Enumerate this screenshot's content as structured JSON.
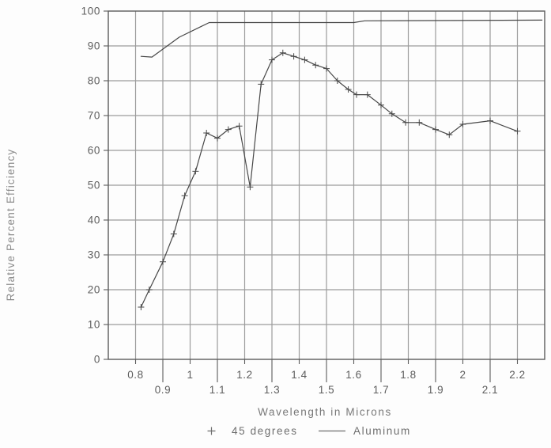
{
  "chart_data": {
    "type": "line",
    "title": "",
    "xlabel": "Wavelength in Microns",
    "ylabel": "Relative Percent Efficiency",
    "xlim": [
      0.7,
      2.3
    ],
    "ylim": [
      0,
      100
    ],
    "x_ticks": [
      0.8,
      0.9,
      1,
      1.1,
      1.2,
      1.3,
      1.4,
      1.5,
      1.6,
      1.7,
      1.8,
      1.9,
      2,
      2.1,
      2.2
    ],
    "x_tick_labels": [
      "0.8",
      "0.9",
      "1",
      "1.1",
      "1.2",
      "1.3",
      "1.4",
      "1.5",
      "1.6",
      "1.7",
      "1.8",
      "1.9",
      "2",
      "2.1",
      "2.2"
    ],
    "y_ticks": [
      0,
      10,
      20,
      30,
      40,
      50,
      60,
      70,
      80,
      90,
      100
    ],
    "y_tick_labels": [
      "0",
      "10",
      "20",
      "30",
      "40",
      "50",
      "60",
      "70",
      "80",
      "90",
      "100"
    ],
    "grid": true,
    "legend_position": "bottom",
    "colors": {
      "grid": "#9c9c9c",
      "frame": "#5c5c5c",
      "line": "#474747",
      "tick_text": "#5d5d5d",
      "title_text": "#787878",
      "background": "#fdfdfd"
    },
    "series": [
      {
        "name": "45 degrees",
        "marker": "+",
        "points": [
          [
            0.82,
            15
          ],
          [
            0.85,
            20
          ],
          [
            0.9,
            28
          ],
          [
            0.94,
            36
          ],
          [
            0.98,
            47
          ],
          [
            1.02,
            54
          ],
          [
            1.06,
            65
          ],
          [
            1.1,
            63.5
          ],
          [
            1.14,
            66
          ],
          [
            1.18,
            67
          ],
          [
            1.22,
            49.5
          ],
          [
            1.26,
            79
          ],
          [
            1.3,
            86
          ],
          [
            1.34,
            88
          ],
          [
            1.38,
            87
          ],
          [
            1.42,
            86
          ],
          [
            1.46,
            84.5
          ],
          [
            1.5,
            83.5
          ],
          [
            1.54,
            80
          ],
          [
            1.58,
            77.5
          ],
          [
            1.61,
            76
          ],
          [
            1.65,
            76
          ],
          [
            1.7,
            73
          ],
          [
            1.74,
            70.5
          ],
          [
            1.79,
            68
          ],
          [
            1.84,
            68
          ],
          [
            1.9,
            66
          ],
          [
            1.95,
            64.5
          ],
          [
            2.0,
            67.5
          ],
          [
            2.1,
            68.5
          ],
          [
            2.2,
            65.5
          ]
        ]
      },
      {
        "name": "Aluminum",
        "marker": "none",
        "points": [
          [
            0.82,
            87
          ],
          [
            0.86,
            86.8
          ],
          [
            0.96,
            92.5
          ],
          [
            1.07,
            96.7
          ],
          [
            1.6,
            96.7
          ],
          [
            1.64,
            97.2
          ],
          [
            2.29,
            97.4
          ]
        ]
      }
    ]
  }
}
